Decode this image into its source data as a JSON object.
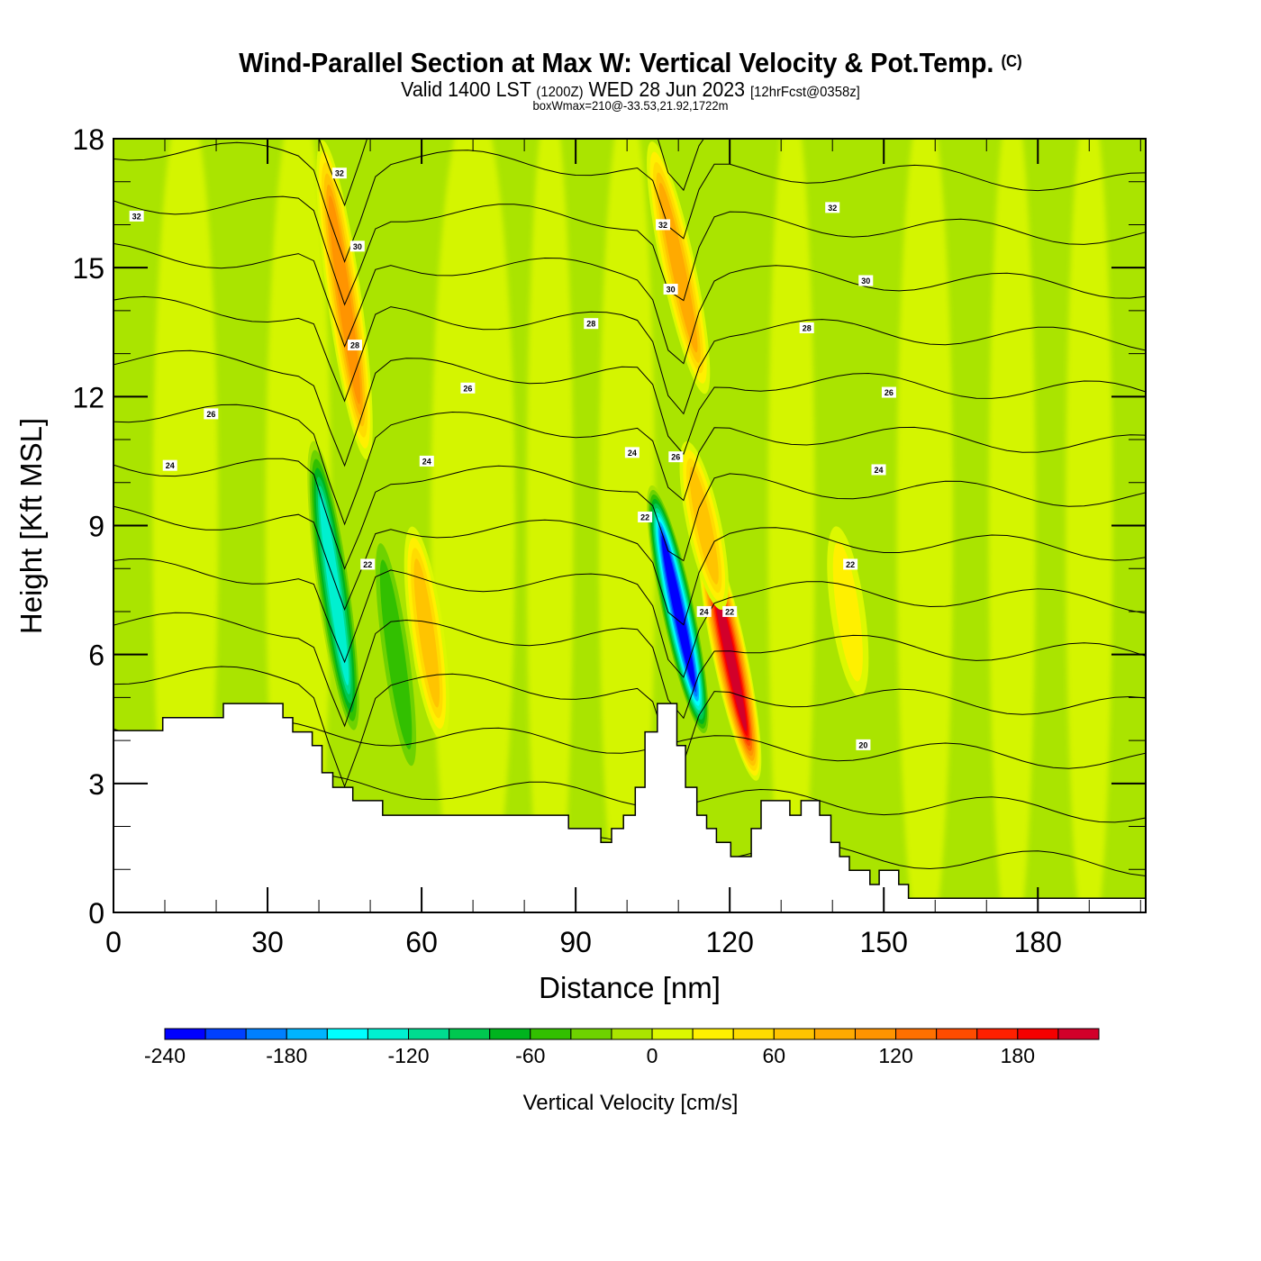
{
  "header": {
    "title": "Wind-Parallel Section at Max W: Vertical Velocity & Pot.Temp.",
    "copyright": "(C)",
    "valid_prefix": "Valid 1400 LST",
    "valid_utc": "(1200Z)",
    "valid_date": "WED 28 Jun 2023",
    "forecast_info": "[12hrFcst@0358z]",
    "box_info": "boxWmax=210@-33.53,21.92,1722m"
  },
  "chart_data": {
    "type": "heatmap",
    "title": "Wind-Parallel Section at Max W: Vertical Velocity & Pot.Temp.",
    "xlabel": "Distance [nm]",
    "ylabel": "Height [Kft MSL]",
    "xlim": [
      0,
      201
    ],
    "ylim": [
      0,
      18
    ],
    "xticks": [
      0,
      30,
      60,
      90,
      120,
      150,
      180
    ],
    "yticks": [
      0,
      3,
      6,
      9,
      12,
      15,
      18
    ],
    "x_minor_step": 10,
    "y_minor_step": 1,
    "colorbar": {
      "label": "Vertical Velocity [cm/s]",
      "levels": [
        -240,
        -220,
        -200,
        -180,
        -160,
        -140,
        -120,
        -100,
        -80,
        -60,
        -40,
        -20,
        0,
        20,
        40,
        60,
        80,
        100,
        120,
        140,
        160,
        180,
        200,
        220
      ],
      "tick_labels": [
        "-240",
        "-180",
        "-120",
        "-60",
        "0",
        "60",
        "120",
        "180"
      ],
      "tick_values": [
        -240,
        -180,
        -120,
        -60,
        0,
        60,
        120,
        180
      ],
      "colors": [
        "#0000ff",
        "#0040ff",
        "#0080ff",
        "#00b4ff",
        "#00ffff",
        "#00f0d0",
        "#00dc90",
        "#00c850",
        "#00b41e",
        "#32c000",
        "#6ed200",
        "#aae400",
        "#dcf800",
        "#fff000",
        "#ffdc00",
        "#ffc400",
        "#ffaa00",
        "#ff9400",
        "#ff7000",
        "#ff4c00",
        "#ff2000",
        "#f50000",
        "#d2002a"
      ]
    },
    "velocity_features": [
      {
        "name": "updraft-1",
        "x": 45,
        "y_range": [
          10.5,
          18
        ],
        "max_cm_s": 120
      },
      {
        "name": "downdraft-1",
        "x": 43,
        "y_range": [
          4,
          11
        ],
        "min_cm_s": -140
      },
      {
        "name": "updraft-2",
        "x": 61,
        "y_range": [
          4,
          9
        ],
        "max_cm_s": 80
      },
      {
        "name": "downdraft-2",
        "x": 55,
        "y_range": [
          3,
          9
        ],
        "min_cm_s": -60
      },
      {
        "name": "updraft-3",
        "x": 110,
        "y_range": [
          12,
          18
        ],
        "max_cm_s": 100
      },
      {
        "name": "downdraft-3",
        "x": 110,
        "y_range": [
          4,
          10
        ],
        "min_cm_s": -240
      },
      {
        "name": "updraft-4",
        "x": 120,
        "y_range": [
          3,
          9
        ],
        "max_cm_s": 210
      },
      {
        "name": "updraft-5",
        "x": 115,
        "y_range": [
          7,
          11
        ],
        "max_cm_s": 80
      },
      {
        "name": "updraft-6",
        "x": 143,
        "y_range": [
          5,
          9
        ],
        "max_cm_s": 40
      }
    ],
    "theta_contour_labels": [
      {
        "text": "32",
        "x": 4.5,
        "y": 16.2
      },
      {
        "text": "32",
        "x": 44,
        "y": 17.2
      },
      {
        "text": "30",
        "x": 47.5,
        "y": 15.5
      },
      {
        "text": "28",
        "x": 47,
        "y": 13.2
      },
      {
        "text": "26",
        "x": 19,
        "y": 11.6
      },
      {
        "text": "26",
        "x": 69,
        "y": 12.2
      },
      {
        "text": "24",
        "x": 11,
        "y": 10.4
      },
      {
        "text": "24",
        "x": 61,
        "y": 10.5
      },
      {
        "text": "22",
        "x": 49.5,
        "y": 8.1
      },
      {
        "text": "28",
        "x": 93,
        "y": 13.7
      },
      {
        "text": "32",
        "x": 107,
        "y": 16
      },
      {
        "text": "30",
        "x": 108.5,
        "y": 14.5
      },
      {
        "text": "24",
        "x": 101,
        "y": 10.7
      },
      {
        "text": "22",
        "x": 103.5,
        "y": 9.2
      },
      {
        "text": "26",
        "x": 109.5,
        "y": 10.6
      },
      {
        "text": "24",
        "x": 115,
        "y": 7
      },
      {
        "text": "22",
        "x": 120,
        "y": 7
      },
      {
        "text": "32",
        "x": 140,
        "y": 16.4
      },
      {
        "text": "30",
        "x": 146.5,
        "y": 14.7
      },
      {
        "text": "28",
        "x": 135,
        "y": 13.6
      },
      {
        "text": "26",
        "x": 151,
        "y": 12.1
      },
      {
        "text": "24",
        "x": 149,
        "y": 10.3
      },
      {
        "text": "22",
        "x": 143.5,
        "y": 8.1
      },
      {
        "text": "20",
        "x": 146,
        "y": 3.9
      }
    ],
    "terrain_kft": [
      [
        0,
        4.23
      ],
      [
        9.6,
        4.23
      ],
      [
        9.6,
        4.53
      ],
      [
        21.4,
        4.53
      ],
      [
        21.4,
        4.86
      ],
      [
        33,
        4.86
      ],
      [
        33,
        4.53
      ],
      [
        34.9,
        4.53
      ],
      [
        34.9,
        4.2
      ],
      [
        38.7,
        4.2
      ],
      [
        38.7,
        3.88
      ],
      [
        40.6,
        3.88
      ],
      [
        40.6,
        3.25
      ],
      [
        42.7,
        3.25
      ],
      [
        42.7,
        2.91
      ],
      [
        46.6,
        2.91
      ],
      [
        46.6,
        2.6
      ],
      [
        52.4,
        2.6
      ],
      [
        52.4,
        2.26
      ],
      [
        88.6,
        2.26
      ],
      [
        88.6,
        1.95
      ],
      [
        94.9,
        1.95
      ],
      [
        94.9,
        1.63
      ],
      [
        97,
        1.63
      ],
      [
        97,
        1.95
      ],
      [
        99.3,
        1.95
      ],
      [
        99.3,
        2.26
      ],
      [
        101.6,
        2.26
      ],
      [
        101.6,
        2.91
      ],
      [
        103.5,
        2.91
      ],
      [
        103.5,
        4.2
      ],
      [
        105.9,
        4.2
      ],
      [
        105.9,
        4.86
      ],
      [
        109.7,
        4.86
      ],
      [
        109.7,
        3.88
      ],
      [
        111.4,
        3.88
      ],
      [
        111.4,
        2.91
      ],
      [
        113.6,
        2.91
      ],
      [
        113.6,
        2.26
      ],
      [
        115.5,
        2.26
      ],
      [
        115.5,
        1.95
      ],
      [
        117.4,
        1.95
      ],
      [
        117.4,
        1.63
      ],
      [
        120.2,
        1.63
      ],
      [
        120.2,
        1.3
      ],
      [
        124.2,
        1.3
      ],
      [
        124.2,
        1.95
      ],
      [
        126.1,
        1.95
      ],
      [
        126.1,
        2.6
      ],
      [
        131.7,
        2.6
      ],
      [
        131.7,
        2.26
      ],
      [
        133.9,
        2.26
      ],
      [
        133.9,
        2.6
      ],
      [
        137.5,
        2.6
      ],
      [
        137.5,
        2.26
      ],
      [
        139.7,
        2.26
      ],
      [
        139.7,
        1.63
      ],
      [
        141.4,
        1.63
      ],
      [
        141.4,
        1.3
      ],
      [
        143.3,
        1.3
      ],
      [
        143.3,
        0.98
      ],
      [
        147.3,
        0.98
      ],
      [
        147.3,
        0.65
      ],
      [
        149.1,
        0.65
      ],
      [
        149.1,
        0.98
      ],
      [
        152.9,
        0.98
      ],
      [
        152.9,
        0.65
      ],
      [
        154.8,
        0.65
      ],
      [
        154.8,
        0.33
      ],
      [
        201,
        0.33
      ]
    ]
  }
}
